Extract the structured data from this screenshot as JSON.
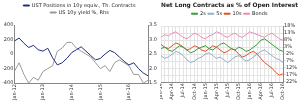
{
  "chart_data": [
    {
      "type": "line",
      "categories": [
        "Jan-12",
        null,
        null,
        null,
        null,
        null,
        "Jan-13",
        null,
        null,
        null,
        null,
        null,
        "Jan-14",
        null,
        null,
        null,
        null,
        null,
        "Jan-15",
        null,
        null,
        null,
        null,
        null,
        "Jan-16",
        null,
        null,
        null,
        null
      ],
      "series": [
        {
          "name": "UST Positions in 10y equiv., Th. Contracts",
          "color": "#1f2f7a",
          "values": [
            180,
            220,
            150,
            90,
            120,
            60,
            40,
            80,
            -50,
            -150,
            -120,
            -60,
            20,
            60,
            100,
            40,
            -20,
            -80,
            -60,
            0,
            50,
            20,
            -40,
            -100,
            -150,
            -120,
            -200,
            -260,
            -300
          ]
        },
        {
          "name": "US 10y yield %, Rhs",
          "color": "#9a9a9a",
          "axis": "y2",
          "values": [
            1.9,
            2.2,
            1.8,
            1.5,
            1.7,
            1.6,
            1.9,
            2.0,
            2.1,
            2.6,
            2.7,
            2.9,
            2.9,
            2.7,
            2.6,
            2.5,
            2.4,
            2.2,
            2.0,
            2.1,
            1.9,
            2.2,
            2.3,
            2.2,
            2.1,
            1.8,
            1.8,
            1.5,
            1.6
          ]
        }
      ],
      "ylim": [
        -400,
        400
      ],
      "yticks": [
        -400,
        -200,
        0,
        200,
        400
      ],
      "y2lim": [
        1.5,
        3.5
      ],
      "y2ticks": [
        1.5,
        {
          "value": 2,
          "label": "2.0"
        },
        2.5,
        {
          "value": 3,
          "label": "3.0"
        },
        3.5
      ],
      "grid": false,
      "legend": "top"
    },
    {
      "type": "line",
      "title": "Net Long Contracts as % of Open Interest",
      "categories": [
        "Jan-14",
        null,
        null,
        "Apr-14",
        null,
        null,
        "Jul-14",
        null,
        null,
        "Oct-14",
        null,
        null,
        "Jan-15",
        null,
        null,
        "Apr-15",
        null,
        null,
        "Jul-15",
        null,
        null,
        "Oct-15",
        null,
        null,
        "Jan-16",
        null,
        null,
        "Apr-16",
        null,
        null,
        "Jul-16",
        null,
        null,
        "Oct-16"
      ],
      "series": [
        {
          "name": "2s",
          "color": "#3a9a3a",
          "values": [
            2,
            3,
            1,
            0,
            2,
            4,
            3,
            1,
            -1,
            0,
            2,
            3,
            4,
            2,
            1,
            3,
            5,
            6,
            4,
            2,
            1,
            3,
            2,
            0,
            1,
            3,
            5,
            8,
            9,
            7,
            5,
            3,
            1,
            0
          ]
        },
        {
          "name": "5s",
          "color": "#8fb0c8",
          "values": [
            -3,
            -5,
            -4,
            -2,
            0,
            -1,
            -3,
            -6,
            -8,
            -7,
            -5,
            -4,
            -2,
            -1,
            -3,
            -5,
            -4,
            -6,
            -8,
            -6,
            -4,
            -3,
            -5,
            -7,
            -6,
            -4,
            -2,
            0,
            1,
            -1,
            -3,
            -5,
            -6,
            -8
          ]
        },
        {
          "name": "10s",
          "color": "#e0502a",
          "values": [
            5,
            3,
            2,
            4,
            6,
            5,
            3,
            1,
            2,
            4,
            3,
            1,
            0,
            2,
            4,
            3,
            1,
            -1,
            0,
            2,
            1,
            -2,
            -4,
            -3,
            -1,
            0,
            -2,
            -5,
            -8,
            -10,
            -12,
            -15,
            -17,
            -16
          ]
        },
        {
          "name": "Bonds",
          "color": "#e58fb5",
          "values": [
            10,
            12,
            11,
            13,
            14,
            12,
            10,
            9,
            11,
            13,
            12,
            10,
            9,
            11,
            12,
            14,
            13,
            11,
            10,
            12,
            13,
            11,
            10,
            12,
            14,
            13,
            12,
            11,
            10,
            12,
            13,
            11,
            9,
            8
          ]
        }
      ],
      "ylim": [
        -22,
        18
      ],
      "yticks": [
        {
          "value": -22,
          "label": "-22%"
        },
        {
          "value": -17,
          "label": "-17%"
        },
        {
          "value": -12,
          "label": "-12%"
        },
        {
          "value": -7,
          "label": "-7%"
        },
        {
          "value": -2,
          "label": "-2%"
        },
        {
          "value": 3,
          "label": "3%"
        },
        {
          "value": 8,
          "label": "8%"
        },
        {
          "value": 13,
          "label": "13%"
        },
        {
          "value": 18,
          "label": "18%"
        }
      ],
      "grid": true,
      "legend": "top"
    }
  ]
}
